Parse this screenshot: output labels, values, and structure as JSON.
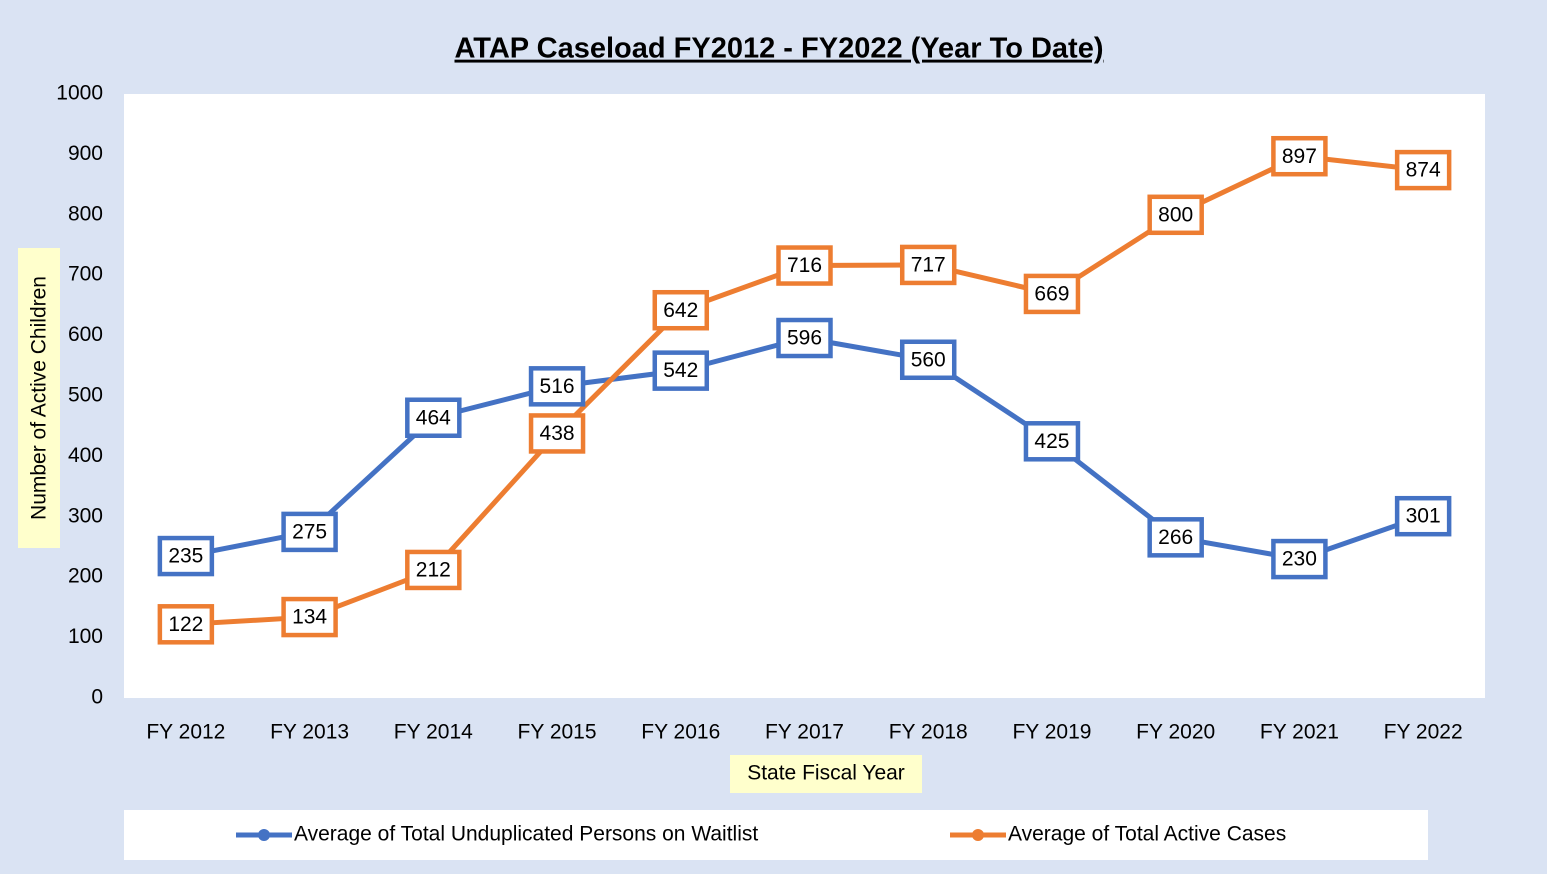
{
  "chart_data": {
    "type": "line",
    "title": "ATAP Caseload FY2012 - FY2022 (Year To Date)",
    "xlabel": "State Fiscal Year",
    "ylabel": "Number of Active Children",
    "categories": [
      "FY 2012",
      "FY 2013",
      "FY 2014",
      "FY 2015",
      "FY 2016",
      "FY 2017",
      "FY 2018",
      "FY 2019",
      "FY 2020",
      "FY 2021",
      "FY 2022"
    ],
    "series": [
      {
        "name": "Average of Total Unduplicated Persons on Waitlist",
        "color": "#4472c4",
        "values": [
          235,
          275,
          464,
          516,
          542,
          596,
          560,
          425,
          266,
          230,
          301
        ]
      },
      {
        "name": "Average of Total Active Cases",
        "color": "#ed7d31",
        "values": [
          122,
          134,
          212,
          438,
          642,
          716,
          717,
          669,
          800,
          897,
          874
        ]
      }
    ],
    "ylim": [
      0,
      1000
    ],
    "yticks": [
      0,
      100,
      200,
      300,
      400,
      500,
      600,
      700,
      800,
      900,
      1000
    ],
    "legend": "bottom"
  }
}
